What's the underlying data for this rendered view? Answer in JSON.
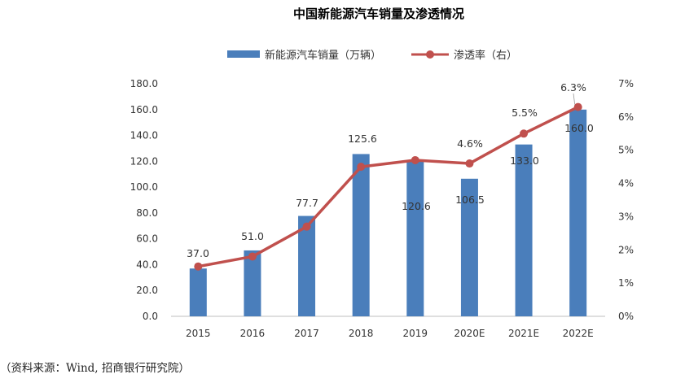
{
  "chart_data": {
    "type": "bar+line",
    "title": "中国新能源汽车销量及渗透情况",
    "categories": [
      "2015",
      "2016",
      "2017",
      "2018",
      "2019",
      "2020E",
      "2021E",
      "2022E"
    ],
    "series": [
      {
        "name": "新能源汽车销量（万辆）",
        "type": "bar",
        "axis": "left",
        "values": [
          37.0,
          51.0,
          77.7,
          125.6,
          120.6,
          106.5,
          133.0,
          160.0
        ],
        "labels": [
          "37.0",
          "51.0",
          "77.7",
          "125.6",
          "120.6",
          "106.5",
          "133.0",
          "160.0"
        ],
        "color": "#4a7ebb"
      },
      {
        "name": "渗透率（右）",
        "type": "line",
        "axis": "right",
        "values": [
          1.5,
          1.8,
          2.7,
          4.5,
          4.7,
          4.6,
          5.5,
          6.3
        ],
        "labels": [
          "",
          "",
          "",
          "",
          "",
          "4.6%",
          "5.5%",
          "6.3%"
        ],
        "color": "#c0504d"
      }
    ],
    "y_left": {
      "min": 0,
      "max": 180,
      "step": 20,
      "ticks": [
        "0.0",
        "20.0",
        "40.0",
        "60.0",
        "80.0",
        "100.0",
        "120.0",
        "140.0",
        "160.0",
        "180.0"
      ]
    },
    "y_right": {
      "min": 0,
      "max": 7,
      "step": 1,
      "ticks": [
        "0%",
        "1%",
        "2%",
        "3%",
        "4%",
        "5%",
        "6%",
        "7%"
      ]
    },
    "grid": false,
    "legend": "top-center"
  },
  "source": "（资料来源：Wind, 招商银行研究院）"
}
